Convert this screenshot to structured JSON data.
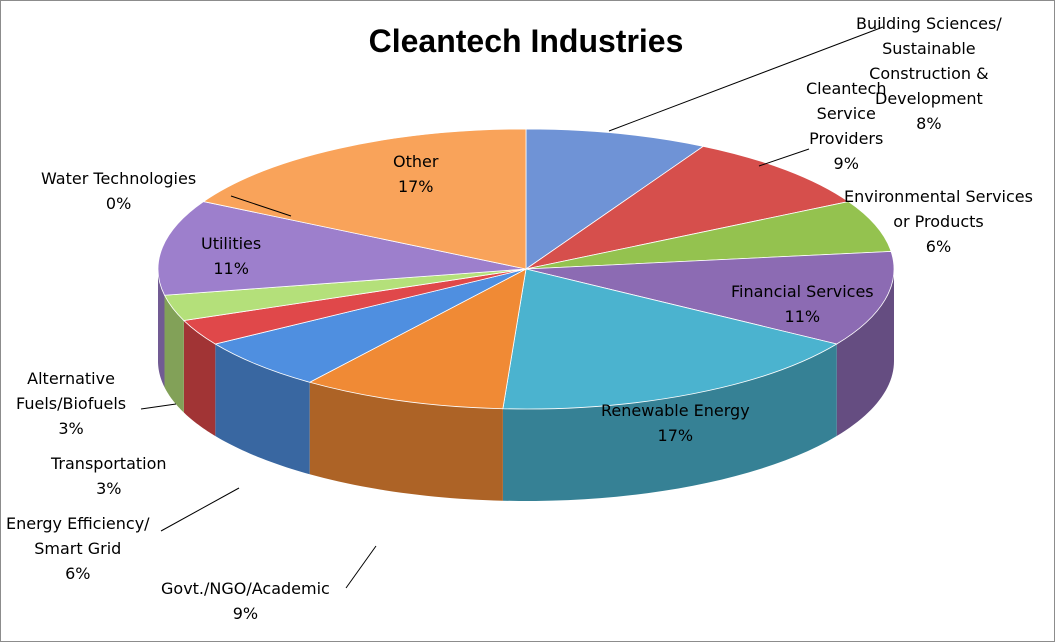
{
  "chart_data": {
    "type": "pie",
    "title": "Cleantech Industries",
    "series": [
      {
        "label": "Building Sciences/ Sustainable Construction & Development",
        "lines": [
          "Building Sciences/",
          "Sustainable",
          "Construction &",
          "Development"
        ],
        "value": 8,
        "percent_label": "8%",
        "color": "#6f93d6"
      },
      {
        "label": "Cleantech Service Providers",
        "lines": [
          "Cleantech",
          "Service",
          "Providers"
        ],
        "value": 9,
        "percent_label": "9%",
        "color": "#d64f4c"
      },
      {
        "label": "Environmental Services or Products",
        "lines": [
          "Environmental Services",
          "or Products"
        ],
        "value": 6,
        "percent_label": "6%",
        "color": "#94c24f"
      },
      {
        "label": "Financial Services",
        "lines": [
          "Financial Services"
        ],
        "value": 11,
        "percent_label": "11%",
        "color": "#8c6bb3"
      },
      {
        "label": "Renewable Energy",
        "lines": [
          "Renewable Energy"
        ],
        "value": 17,
        "percent_label": "17%",
        "color": "#4bb3cf"
      },
      {
        "label": "Govt./NGO/Academic",
        "lines": [
          "Govt./NGO/Academic"
        ],
        "value": 9,
        "percent_label": "9%",
        "color": "#f08a35"
      },
      {
        "label": "Energy Efficiency/ Smart Grid",
        "lines": [
          "Energy Efficiency/",
          "Smart Grid"
        ],
        "value": 6,
        "percent_label": "6%",
        "color": "#4f8fe0"
      },
      {
        "label": "Transportation",
        "lines": [
          "Transportation"
        ],
        "value": 3,
        "percent_label": "3%",
        "color": "#e0484a"
      },
      {
        "label": "Alternative Fuels/Biofuels",
        "lines": [
          "Alternative",
          "Fuels/Biofuels"
        ],
        "value": 3,
        "percent_label": "3%",
        "color": "#b4e07a"
      },
      {
        "label": "Utilities",
        "lines": [
          "Utilities"
        ],
        "value": 11,
        "percent_label": "11%",
        "color": "#9d7fcc"
      },
      {
        "label": "Water Technologies",
        "lines": [
          "Water Technologies"
        ],
        "value": 0,
        "percent_label": "0%",
        "color": "#4bacc6"
      },
      {
        "label": "Other",
        "lines": [
          "Other"
        ],
        "value": 17,
        "percent_label": "17%",
        "color": "#f9a35a"
      }
    ],
    "legend": "none",
    "style": "3d-pie"
  }
}
